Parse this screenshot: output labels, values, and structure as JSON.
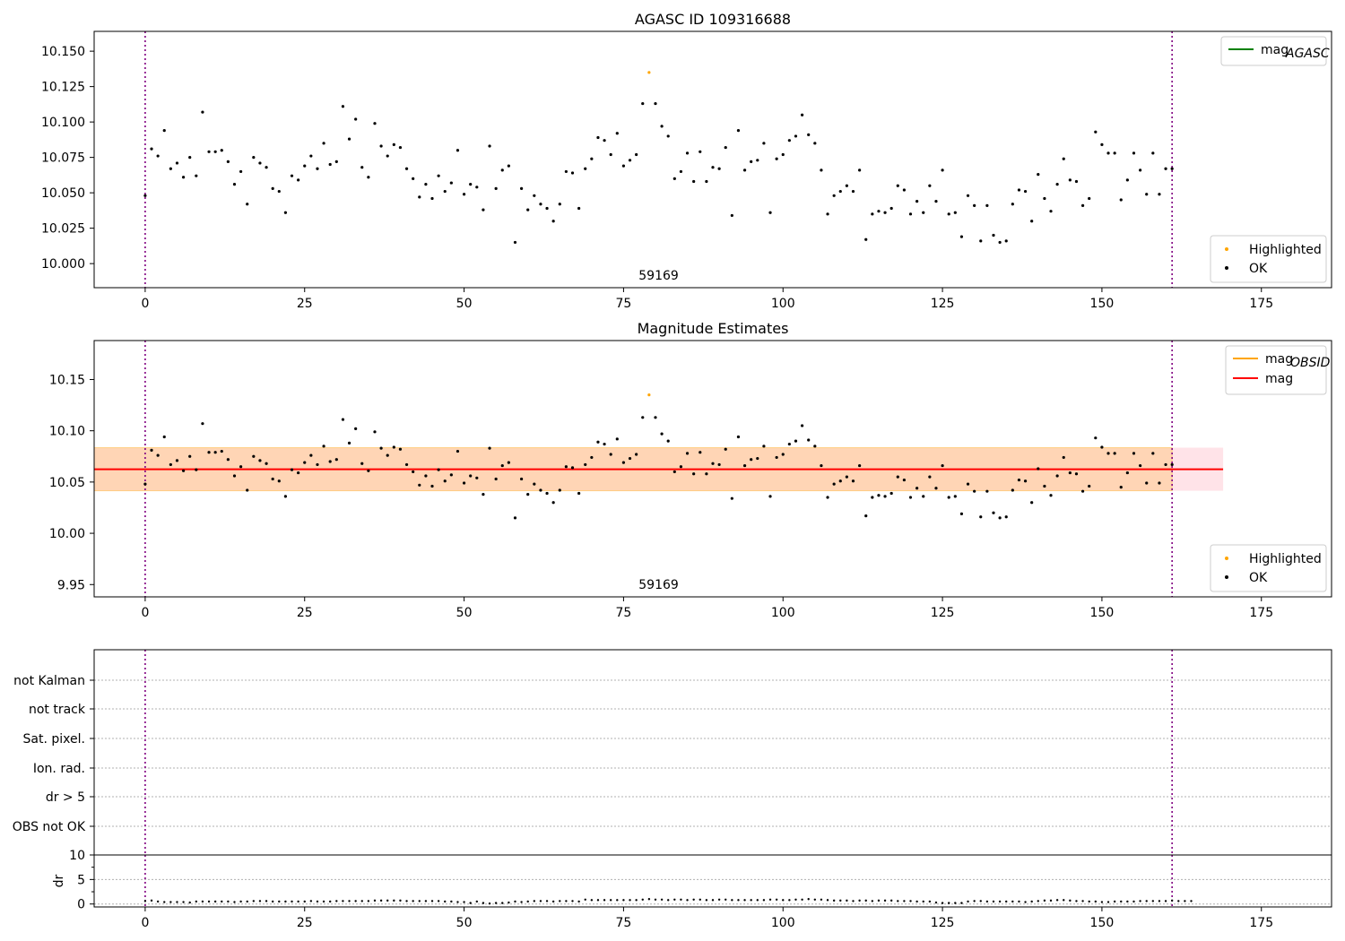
{
  "chart_data": [
    {
      "type": "scatter",
      "title": "AGASC ID 109316688",
      "annotation": "59169",
      "xlim": [
        -8,
        186
      ],
      "ylim": [
        9.983,
        10.164
      ],
      "xticks": [
        "0",
        "25",
        "50",
        "75",
        "100",
        "125",
        "150",
        "175"
      ],
      "yticks": [
        "10.000",
        "10.025",
        "10.050",
        "10.075",
        "10.100",
        "10.125",
        "10.150"
      ],
      "vlines": [
        0,
        161
      ],
      "legend_top": [
        {
          "label": "mag",
          "sub": "AGASC",
          "color": "#008000"
        }
      ],
      "legend_bottom": [
        {
          "label": "Highlighted",
          "color": "#ffa500"
        },
        {
          "label": "OK",
          "color": "#000000"
        }
      ]
    },
    {
      "type": "scatter",
      "title": "Magnitude Estimates",
      "annotation": "59169",
      "xlim": [
        -8,
        186
      ],
      "ylim": [
        9.938,
        10.188
      ],
      "xticks": [
        "0",
        "25",
        "50",
        "75",
        "100",
        "125",
        "150",
        "175"
      ],
      "yticks": [
        "9.95",
        "10.00",
        "10.05",
        "10.10",
        "10.15"
      ],
      "vlines": [
        0,
        161
      ],
      "mag_line": 10.0625,
      "band": [
        10.0415,
        10.0835
      ],
      "band_xrange": [
        -8,
        169
      ],
      "legend_top": [
        {
          "label": "mag",
          "sub": "OBSID",
          "color": "#ffa500"
        },
        {
          "label": "mag",
          "sub": "",
          "color": "#ff0000"
        }
      ],
      "legend_bottom": [
        {
          "label": "Highlighted",
          "color": "#ffa500"
        },
        {
          "label": "OK",
          "color": "#000000"
        }
      ]
    },
    {
      "type": "scatter",
      "flags": [
        "not Kalman",
        "not track",
        "Sat. pixel.",
        "Ion. rad.",
        "dr > 5",
        "OBS not OK"
      ],
      "ylabel": "dr",
      "yticks": [
        "0",
        "5",
        "10"
      ],
      "xticks": [
        "0",
        "25",
        "50",
        "75",
        "100",
        "125",
        "150",
        "175"
      ],
      "xlim": [
        -8,
        186
      ],
      "ylim": [
        -0.6,
        10
      ]
    }
  ],
  "series": {
    "x_start": 0,
    "mag": [
      10.048,
      10.081,
      10.076,
      10.094,
      10.067,
      10.071,
      10.061,
      10.075,
      10.062,
      10.107,
      10.079,
      10.079,
      10.08,
      10.072,
      10.056,
      10.065,
      10.042,
      10.075,
      10.071,
      10.068,
      10.053,
      10.051,
      10.036,
      10.062,
      10.059,
      10.069,
      10.076,
      10.067,
      10.085,
      10.07,
      10.072,
      10.111,
      10.088,
      10.102,
      10.068,
      10.061,
      10.099,
      10.083,
      10.076,
      10.084,
      10.082,
      10.067,
      10.06,
      10.047,
      10.056,
      10.046,
      10.062,
      10.051,
      10.057,
      10.08,
      10.049,
      10.056,
      10.054,
      10.038,
      10.083,
      10.053,
      10.066,
      10.069,
      10.015,
      10.053,
      10.038,
      10.048,
      10.042,
      10.039,
      10.03,
      10.042,
      10.065,
      10.064,
      10.039,
      10.067,
      10.074,
      10.089,
      10.087,
      10.077,
      10.092,
      10.069,
      10.073,
      10.077,
      10.113,
      10.135,
      10.113,
      10.097,
      10.09,
      10.06,
      10.065,
      10.078,
      10.058,
      10.079,
      10.058,
      10.068,
      10.067,
      10.082,
      10.034,
      10.094,
      10.066,
      10.072,
      10.073,
      10.085,
      10.036,
      10.074,
      10.077,
      10.087,
      10.09,
      10.105,
      10.091,
      10.085,
      10.066,
      10.035,
      10.048,
      10.051,
      10.055,
      10.051,
      10.066,
      10.017,
      10.035,
      10.037,
      10.036,
      10.039,
      10.055,
      10.052,
      10.035,
      10.044,
      10.036,
      10.055,
      10.044,
      10.066,
      10.035,
      10.036,
      10.019,
      10.048,
      10.041,
      10.016,
      10.041,
      10.02,
      10.015,
      10.016,
      10.042,
      10.052,
      10.051,
      10.03,
      10.063,
      10.046,
      10.037,
      10.056,
      10.074,
      10.059,
      10.058,
      10.041,
      10.046,
      10.093,
      10.084,
      10.078,
      10.078,
      10.045,
      10.059,
      10.078,
      10.066,
      10.049,
      10.078,
      10.049,
      10.067,
      10.067
    ],
    "highlighted_index": 79,
    "dr": [
      0.6,
      0.7,
      0.5,
      0.4,
      0.4,
      0.4,
      0.4,
      0.3,
      0.5,
      0.5,
      0.5,
      0.5,
      0.5,
      0.5,
      0.4,
      0.5,
      0.5,
      0.6,
      0.6,
      0.6,
      0.5,
      0.5,
      0.5,
      0.5,
      0.5,
      0.5,
      0.6,
      0.5,
      0.5,
      0.5,
      0.6,
      0.6,
      0.6,
      0.6,
      0.6,
      0.6,
      0.7,
      0.7,
      0.7,
      0.7,
      0.7,
      0.6,
      0.6,
      0.6,
      0.6,
      0.6,
      0.6,
      0.5,
      0.5,
      0.4,
      0.4,
      0.2,
      0.5,
      0.2,
      0.1,
      0.2,
      0.2,
      0.3,
      0.5,
      0.4,
      0.5,
      0.6,
      0.6,
      0.6,
      0.5,
      0.6,
      0.6,
      0.6,
      0.5,
      0.9,
      0.8,
      0.8,
      0.8,
      0.8,
      0.8,
      0.8,
      0.8,
      0.8,
      0.9,
      1.0,
      0.9,
      0.9,
      0.8,
      0.9,
      0.9,
      0.8,
      0.9,
      0.9,
      0.8,
      0.8,
      0.9,
      0.9,
      0.8,
      0.8,
      0.8,
      0.8,
      0.8,
      0.8,
      0.9,
      0.9,
      0.8,
      0.8,
      0.9,
      0.9,
      1.0,
      0.9,
      0.9,
      0.8,
      0.7,
      0.7,
      0.7,
      0.6,
      0.7,
      0.7,
      0.6,
      0.7,
      0.7,
      0.7,
      0.6,
      0.6,
      0.6,
      0.5,
      0.5,
      0.5,
      0.3,
      0.2,
      0.2,
      0.2,
      0.2,
      0.5,
      0.6,
      0.6,
      0.5,
      0.5,
      0.5,
      0.5,
      0.5,
      0.5,
      0.4,
      0.5,
      0.6,
      0.7,
      0.7,
      0.8,
      0.8,
      0.7,
      0.6,
      0.6,
      0.5,
      0.5,
      0.4,
      0.4,
      0.5,
      0.5,
      0.5,
      0.5,
      0.6,
      0.6,
      0.6,
      0.6,
      0.6,
      0.7,
      0.6,
      0.6,
      0.6
    ]
  }
}
